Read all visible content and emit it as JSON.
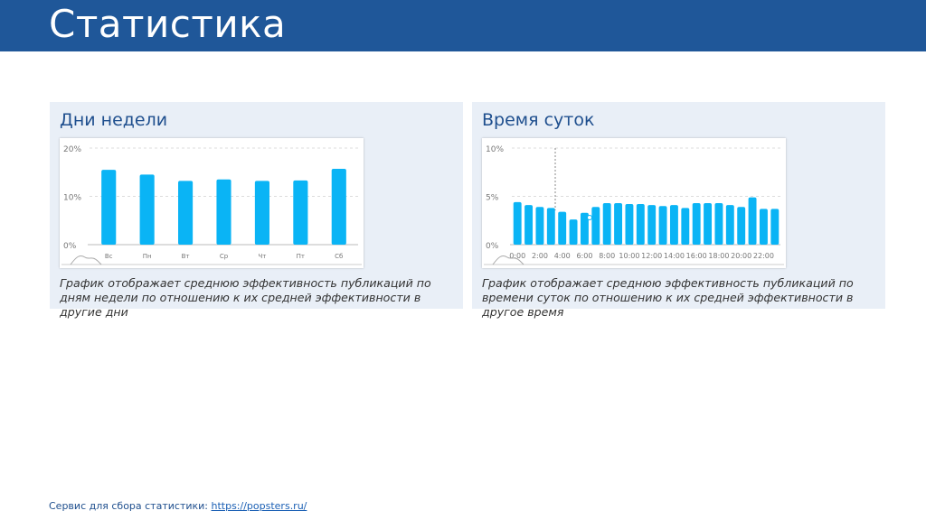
{
  "page": {
    "title": "Статистика"
  },
  "panels": [
    {
      "title": "Дни недели",
      "description": "График отображает среднюю эффективность публикаций по дням недели по отношению к их средней эффективности в другие дни"
    },
    {
      "title": "Время суток",
      "description": "График отображает среднюю эффективность публикаций по времени суток по отношению к их средней эффективности в другое время"
    }
  ],
  "footer": {
    "text": "Сервис для сбора статистики: ",
    "link_text": "https://popsters.ru/"
  },
  "colors": {
    "header": "#1f5799",
    "bar": "#0ab4f5",
    "panel": "#e9eff7"
  },
  "chart_data": [
    {
      "type": "bar",
      "categories": [
        "Вс",
        "Пн",
        "Вт",
        "Ср",
        "Чт",
        "Пт",
        "Сб"
      ],
      "values": [
        15.5,
        14.5,
        13.2,
        13.5,
        13.2,
        13.3,
        15.7
      ],
      "yticks": [
        "0%",
        "10%",
        "20%"
      ],
      "ylim": [
        0,
        20
      ],
      "grid": true
    },
    {
      "type": "bar",
      "categories": [
        "0:00",
        "1:00",
        "2:00",
        "3:00",
        "4:00",
        "5:00",
        "6:00",
        "7:00",
        "8:00",
        "9:00",
        "10:00",
        "11:00",
        "12:00",
        "13:00",
        "14:00",
        "15:00",
        "16:00",
        "17:00",
        "18:00",
        "19:00",
        "20:00",
        "21:00",
        "22:00",
        "23:00"
      ],
      "xticks": [
        "0:00",
        "2:00",
        "4:00",
        "6:00",
        "8:00",
        "10:00",
        "12:00",
        "14:00",
        "16:00",
        "18:00",
        "20:00",
        "22:00"
      ],
      "values": [
        4.4,
        4.1,
        3.9,
        3.8,
        3.4,
        2.6,
        3.3,
        3.9,
        4.3,
        4.3,
        4.2,
        4.2,
        4.1,
        4.0,
        4.1,
        3.8,
        4.3,
        4.3,
        4.3,
        4.1,
        3.9,
        4.9,
        3.7,
        3.7
      ],
      "yticks": [
        "0%",
        "5%",
        "10%"
      ],
      "ylim": [
        0,
        10
      ],
      "grid": true
    }
  ]
}
